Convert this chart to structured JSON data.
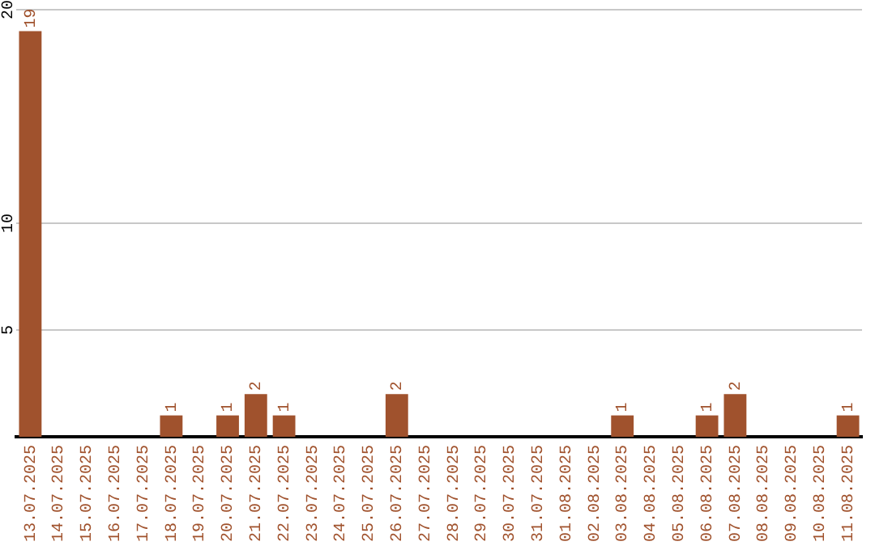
{
  "chart_data": {
    "type": "bar",
    "categories": [
      "13.07.2025",
      "14.07.2025",
      "15.07.2025",
      "16.07.2025",
      "17.07.2025",
      "18.07.2025",
      "19.07.2025",
      "20.07.2025",
      "21.07.2025",
      "22.07.2025",
      "23.07.2025",
      "24.07.2025",
      "25.07.2025",
      "26.07.2025",
      "27.07.2025",
      "28.07.2025",
      "29.07.2025",
      "30.07.2025",
      "31.07.2025",
      "01.08.2025",
      "02.08.2025",
      "03.08.2025",
      "04.08.2025",
      "05.08.2025",
      "06.08.2025",
      "07.08.2025",
      "08.08.2025",
      "09.08.2025",
      "10.08.2025",
      "11.08.2025"
    ],
    "values": [
      19,
      0,
      0,
      0,
      0,
      1,
      0,
      1,
      2,
      1,
      0,
      0,
      0,
      2,
      0,
      0,
      0,
      0,
      0,
      0,
      0,
      1,
      0,
      0,
      1,
      2,
      0,
      0,
      0,
      1
    ],
    "value_labels": [
      "19",
      null,
      null,
      null,
      null,
      "1",
      null,
      "1",
      "2",
      "1",
      null,
      null,
      null,
      "2",
      null,
      null,
      null,
      null,
      null,
      null,
      null,
      "1",
      null,
      null,
      "1",
      "2",
      null,
      null,
      null,
      "1"
    ],
    "color": "#a0522d",
    "ylim": [
      0,
      20
    ],
    "yticks": [
      5,
      10,
      20
    ],
    "grid": "y",
    "legend": false
  }
}
